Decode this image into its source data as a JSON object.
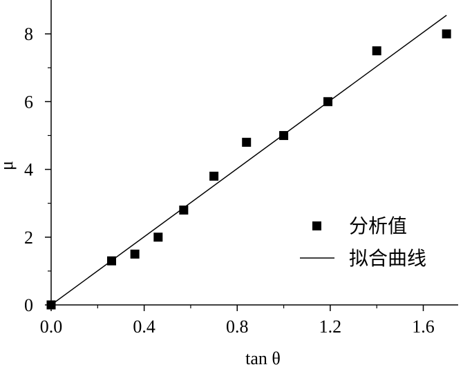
{
  "chart_data": {
    "type": "scatter",
    "xlabel": "tan θ",
    "ylabel": "μ",
    "xlim": [
      0.0,
      1.75
    ],
    "ylim": [
      0,
      9.0
    ],
    "xticks": [
      0.0,
      0.4,
      0.8,
      1.2,
      1.6
    ],
    "xtick_labels": [
      "0.0",
      "0.4",
      "0.8",
      "1.2",
      "1.6"
    ],
    "yticks": [
      0,
      2,
      4,
      6,
      8
    ],
    "ytick_labels": [
      "0",
      "2",
      "4",
      "6",
      "8"
    ],
    "grid": false,
    "legend_position": "bottom-right",
    "series": [
      {
        "name": "分析值",
        "kind": "scatter",
        "marker": "square",
        "color": "#000000",
        "x": [
          0.0,
          0.26,
          0.36,
          0.46,
          0.57,
          0.7,
          0.84,
          1.0,
          1.19,
          1.4,
          1.7
        ],
        "y": [
          0.0,
          1.3,
          1.5,
          2.0,
          2.8,
          3.8,
          4.8,
          5.0,
          6.0,
          7.5,
          8.0
        ]
      },
      {
        "name": "拟合曲线",
        "kind": "line",
        "color": "#000000",
        "x": [
          0.0,
          1.7
        ],
        "y": [
          0.0,
          8.55
        ]
      }
    ]
  }
}
